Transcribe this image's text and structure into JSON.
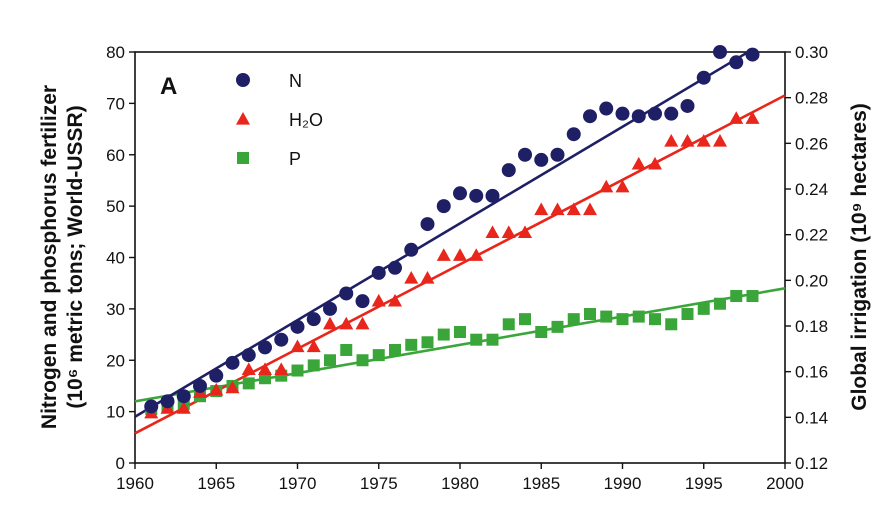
{
  "chart_data": {
    "type": "scatter",
    "panel_label": "A",
    "title": "",
    "xlabel": "",
    "ylabel_left": "Nitrogen and phosphorus fertilizer (10⁶ metric tons; World-USSR)",
    "ylabel_left_line1": "Nitrogen and phosphorus fertilizer",
    "ylabel_left_line2": "(10⁶ metric tons; World-USSR)",
    "ylabel_right": "Global irrigation (10⁹ hectares)",
    "xlim": [
      1960,
      2000
    ],
    "ylim_left": [
      0,
      80
    ],
    "ylim_right": [
      0.12,
      0.3
    ],
    "x_ticks": [
      "1960",
      "1965",
      "1970",
      "1975",
      "1980",
      "1985",
      "1990",
      "1995",
      "2000"
    ],
    "y_left_ticks": [
      "0",
      "10",
      "20",
      "30",
      "40",
      "50",
      "60",
      "70",
      "80"
    ],
    "y_right_ticks": [
      "0.12",
      "0.14",
      "0.16",
      "0.18",
      "0.20",
      "0.22",
      "0.24",
      "0.26",
      "0.28",
      "0.30"
    ],
    "legend_position": "top-left",
    "series": [
      {
        "name": "N",
        "marker": "circle",
        "color": "#1f1f66",
        "axis": "left",
        "x": [
          1961,
          1962,
          1963,
          1964,
          1965,
          1966,
          1967,
          1968,
          1969,
          1970,
          1971,
          1972,
          1973,
          1974,
          1975,
          1976,
          1977,
          1978,
          1979,
          1980,
          1981,
          1982,
          1983,
          1984,
          1985,
          1986,
          1987,
          1988,
          1989,
          1990,
          1991,
          1992,
          1993,
          1994,
          1995,
          1996,
          1997,
          1998
        ],
        "y": [
          11,
          12,
          13,
          15,
          17,
          19.5,
          21,
          22.5,
          24,
          26.5,
          28,
          30,
          33,
          31.5,
          37,
          38,
          41.5,
          46.5,
          50,
          52.5,
          52,
          52,
          57,
          60,
          59,
          60,
          64,
          67.5,
          69,
          68,
          67.5,
          68,
          68,
          69.5,
          75,
          80,
          78,
          79.5
        ],
        "trend": [
          [
            1960,
            9
          ],
          [
            1998,
            80.5
          ]
        ]
      },
      {
        "name": "H₂O",
        "marker": "triangle",
        "color": "#e8261c",
        "axis": "right",
        "x": [
          1961,
          1962,
          1963,
          1964,
          1965,
          1966,
          1967,
          1968,
          1969,
          1970,
          1971,
          1972,
          1973,
          1974,
          1975,
          1976,
          1977,
          1978,
          1979,
          1980,
          1981,
          1982,
          1983,
          1984,
          1985,
          1986,
          1987,
          1988,
          1989,
          1990,
          1991,
          1992,
          1993,
          1994,
          1995,
          1996,
          1997,
          1998
        ],
        "y": [
          0.142,
          0.144,
          0.144,
          0.151,
          0.152,
          0.153,
          0.161,
          0.161,
          0.161,
          0.171,
          0.171,
          0.181,
          0.181,
          0.181,
          0.191,
          0.191,
          0.201,
          0.201,
          0.211,
          0.211,
          0.211,
          0.221,
          0.221,
          0.221,
          0.231,
          0.231,
          0.231,
          0.231,
          0.241,
          0.241,
          0.251,
          0.251,
          0.261,
          0.261,
          0.261,
          0.261,
          0.271,
          0.271
        ],
        "trend": [
          [
            1960,
            0.133
          ],
          [
            2000,
            0.281
          ]
        ]
      },
      {
        "name": "P",
        "marker": "square",
        "color": "#3aa63a",
        "axis": "left",
        "x": [
          1961,
          1962,
          1963,
          1964,
          1965,
          1966,
          1967,
          1968,
          1969,
          1970,
          1971,
          1972,
          1973,
          1974,
          1975,
          1976,
          1977,
          1978,
          1979,
          1980,
          1981,
          1982,
          1983,
          1984,
          1985,
          1986,
          1987,
          1988,
          1989,
          1990,
          1991,
          1992,
          1993,
          1994,
          1995,
          1996,
          1997,
          1998
        ],
        "y": [
          10.5,
          11,
          11.5,
          13,
          14,
          15,
          15.5,
          16.5,
          17,
          18,
          19,
          20,
          22,
          20,
          21,
          22,
          23,
          23.5,
          25,
          25.5,
          24,
          24,
          27,
          28,
          25.5,
          26.5,
          28,
          29,
          28.5,
          28,
          28.5,
          28,
          27,
          29,
          30,
          31,
          32.5,
          32.5
        ],
        "trend": [
          [
            1960,
            12
          ],
          [
            2000,
            34
          ]
        ]
      }
    ]
  }
}
